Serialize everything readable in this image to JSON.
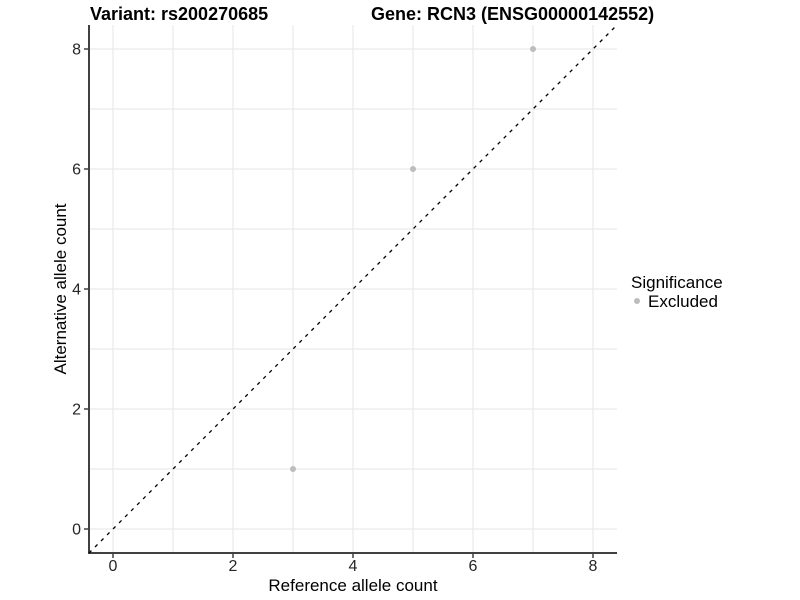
{
  "titles": {
    "variant": "Variant: rs200270685",
    "gene": "Gene: RCN3 (ENSG00000142552)"
  },
  "axes": {
    "x_label": "Reference allele count",
    "y_label": "Alternative allele count"
  },
  "legend": {
    "title": "Significance",
    "items": [
      {
        "label": "Excluded",
        "color": "#bdbdbd",
        "marker": "circle-point-icon"
      }
    ]
  },
  "colors": {
    "background": "#ffffff",
    "grid": "#e6e6e6",
    "axis_line": "#404040",
    "tick_text": "#262626",
    "point": "#bdbdbd",
    "reference_line": "#000000"
  },
  "chart_data": {
    "type": "scatter",
    "title_left": "Variant: rs200270685",
    "title_right": "Gene: RCN3 (ENSG00000142552)",
    "xlabel": "Reference allele count",
    "ylabel": "Alternative allele count",
    "xlim": [
      -0.4,
      8.4
    ],
    "ylim": [
      -0.4,
      8.4
    ],
    "x_ticks": [
      0,
      2,
      4,
      6,
      8
    ],
    "y_ticks": [
      0,
      2,
      4,
      6,
      8
    ],
    "grid": true,
    "grid_every": 1,
    "legend_position": "right",
    "series": [
      {
        "name": "Excluded",
        "color": "#bdbdbd",
        "points": [
          [
            3,
            1
          ],
          [
            5,
            6
          ],
          [
            7,
            8
          ]
        ]
      }
    ],
    "reference_line": {
      "kind": "identity y=x",
      "style": "dashed",
      "color": "#000000"
    }
  }
}
